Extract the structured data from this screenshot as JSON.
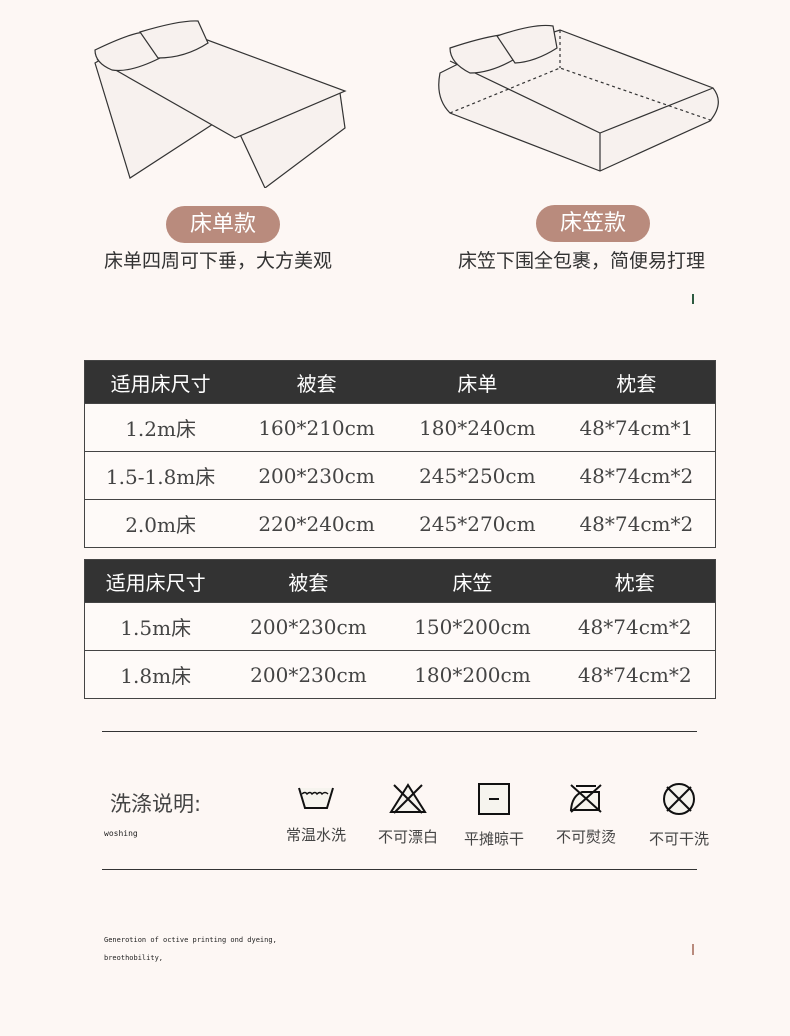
{
  "styles": [
    {
      "badge": "床单款",
      "description": "床单四周可下垂，大方美观"
    },
    {
      "badge": "床笠款",
      "description": "床笠下围全包裹，简便易打理"
    }
  ],
  "accent_color": "#b98b7d",
  "table_sheet": {
    "headers": [
      "适用床尺寸",
      "被套",
      "床单",
      "枕套"
    ],
    "rows": [
      [
        "1.2m床",
        "160*210cm",
        "180*240cm",
        "48*74cm*1"
      ],
      [
        "1.5-1.8m床",
        "200*230cm",
        "245*250cm",
        "48*74cm*2"
      ],
      [
        "2.0m床",
        "220*240cm",
        "245*270cm",
        "48*74cm*2"
      ]
    ]
  },
  "table_fitted": {
    "headers": [
      "适用床尺寸",
      "被套",
      "床笠",
      "枕套"
    ],
    "rows": [
      [
        "1.5m床",
        "200*230cm",
        "150*200cm",
        "48*74cm*2"
      ],
      [
        "1.8m床",
        "200*230cm",
        "180*200cm",
        "48*74cm*2"
      ]
    ]
  },
  "care": {
    "title": "洗涤说明:",
    "subtitle": "woshing",
    "items": [
      {
        "icon": "wash-basin-icon",
        "label": "常温水洗"
      },
      {
        "icon": "no-bleach-icon",
        "label": "不可漂白"
      },
      {
        "icon": "dry-flat-icon",
        "label": "平摊晾干"
      },
      {
        "icon": "no-iron-icon",
        "label": "不可熨烫"
      },
      {
        "icon": "no-dry-clean-icon",
        "label": "不可干洗"
      }
    ]
  },
  "footer": {
    "line1": "Generotion of octive printing ond dyeing,",
    "line2": "breothobility,"
  }
}
